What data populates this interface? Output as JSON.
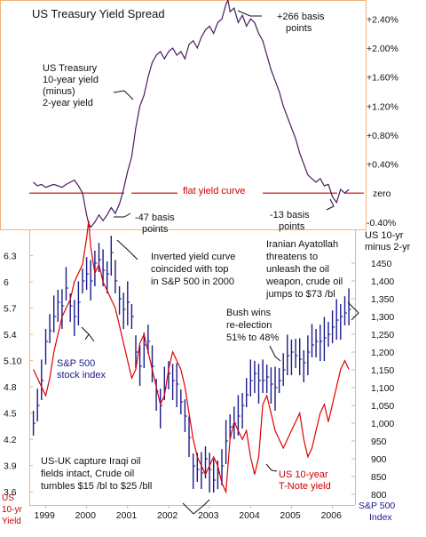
{
  "colors": {
    "spread": "#4b1a5e",
    "sp500": "#1a1a8c",
    "tnote": "#e00000",
    "flat_line": "#cc0000",
    "frame": "#f2b37a",
    "text": "#111111"
  },
  "chart_data": [
    {
      "type": "line",
      "title": "US Treasury Yield Spread",
      "ylabel": "US 10-yr minus 2-yr",
      "yticks": [
        "+2.40%",
        "+2.00%",
        "+1.60%",
        "+1.20%",
        "+0.80%",
        "+0.40%",
        "zero",
        "-0.40%"
      ],
      "ylim": [
        -0.5,
        2.6
      ],
      "series": [
        {
          "x": [
            1998.7,
            1998.8,
            1998.9,
            1999.0,
            1999.1,
            1999.2,
            1999.3,
            1999.4,
            1999.5,
            1999.6,
            1999.7,
            1999.8,
            1999.9,
            2000.0,
            2000.05,
            2000.1,
            2000.2,
            2000.3,
            2000.4,
            2000.5,
            2000.6,
            2000.7,
            2000.8,
            2000.9,
            2001.0,
            2001.1,
            2001.2,
            2001.3,
            2001.4,
            2001.5,
            2001.6,
            2001.7,
            2001.8,
            2001.9,
            2002.0,
            2002.1,
            2002.2,
            2002.3,
            2002.4,
            2002.5,
            2002.6,
            2002.7,
            2002.8,
            2002.9,
            2003.0,
            2003.1,
            2003.2,
            2003.3,
            2003.4,
            2003.45,
            2003.5,
            2003.6,
            2003.7,
            2003.8,
            2003.9,
            2004.0,
            2004.1,
            2004.2,
            2004.3,
            2004.4,
            2004.5,
            2004.6,
            2004.7,
            2004.8,
            2004.9,
            2005.0,
            2005.1,
            2005.2,
            2005.3,
            2005.4,
            2005.5,
            2005.6,
            2005.7,
            2005.8,
            2005.9,
            2006.0,
            2006.1,
            2006.2,
            2006.3,
            2006.4
          ],
          "values": [
            0.15,
            0.1,
            0.12,
            0.08,
            0.1,
            0.12,
            0.1,
            0.08,
            0.12,
            0.15,
            0.18,
            0.1,
            0.0,
            -0.3,
            -0.42,
            -0.47,
            -0.4,
            -0.3,
            -0.38,
            -0.3,
            -0.2,
            -0.28,
            -0.15,
            0.05,
            0.3,
            0.5,
            0.9,
            1.2,
            1.35,
            1.6,
            1.8,
            1.9,
            1.95,
            1.85,
            1.95,
            2.0,
            1.9,
            1.95,
            1.85,
            2.05,
            2.1,
            2.0,
            2.15,
            2.25,
            2.3,
            2.2,
            2.35,
            2.4,
            2.6,
            2.66,
            2.5,
            2.55,
            2.35,
            2.45,
            2.3,
            2.4,
            2.35,
            2.2,
            2.1,
            1.9,
            1.7,
            1.55,
            1.4,
            1.2,
            1.05,
            0.9,
            0.75,
            0.55,
            0.4,
            0.25,
            0.2,
            0.15,
            0.2,
            0.1,
            0.12,
            -0.05,
            -0.13,
            0.05,
            0.0,
            0.05
          ]
        }
      ],
      "flat_line_label": "flat yield curve"
    },
    {
      "type": "line",
      "xticks": [
        "1999",
        "2000",
        "2001",
        "2002",
        "2003",
        "2004",
        "2005",
        "2006"
      ],
      "left_axis": {
        "label": "US 10-yr Yield",
        "ticks": [
          6.3,
          6,
          5.7,
          5.4,
          5.1,
          4.8,
          4.5,
          4.2,
          3.9,
          3.6
        ],
        "tick_labels": [
          "6.3",
          "6",
          "5.7",
          "5.4",
          "5.10",
          "4.8",
          "4.5",
          "4.2",
          "3.9",
          "3.6"
        ],
        "ylim": [
          3.45,
          6.6
        ]
      },
      "right_axis": {
        "label": "S&P 500 Index",
        "ticks": [
          1450,
          1400,
          1350,
          1300,
          1250,
          1200,
          1150,
          1100,
          1050,
          1000,
          950,
          900,
          850,
          800
        ],
        "tick_labels": [
          "1450",
          "1,400",
          "1,350",
          "1,300",
          "1,250",
          "1,200",
          "1,150",
          "1,100",
          "1,050",
          "1,000",
          "950",
          "900",
          "850",
          "800"
        ],
        "ylim": [
          770,
          1545
        ]
      },
      "series": [
        {
          "name": "S&P 500 stock index",
          "axis": "right",
          "x": [
            1998.7,
            1998.8,
            1998.9,
            1999.0,
            1999.1,
            1999.2,
            1999.3,
            1999.4,
            1999.5,
            1999.6,
            1999.7,
            1999.8,
            1999.9,
            2000.0,
            2000.1,
            2000.2,
            2000.3,
            2000.4,
            2000.5,
            2000.6,
            2000.7,
            2000.8,
            2000.9,
            2001.0,
            2001.1,
            2001.2,
            2001.3,
            2001.4,
            2001.5,
            2001.6,
            2001.7,
            2001.8,
            2001.9,
            2002.0,
            2002.1,
            2002.2,
            2002.3,
            2002.4,
            2002.5,
            2002.6,
            2002.7,
            2002.8,
            2002.9,
            2003.0,
            2003.1,
            2003.2,
            2003.3,
            2003.4,
            2003.5,
            2003.6,
            2003.7,
            2003.8,
            2003.9,
            2004.0,
            2004.1,
            2004.2,
            2004.3,
            2004.4,
            2004.5,
            2004.6,
            2004.7,
            2004.8,
            2004.9,
            2005.0,
            2005.1,
            2005.2,
            2005.3,
            2005.4,
            2005.5,
            2005.6,
            2005.7,
            2005.8,
            2005.9,
            2006.0,
            2006.1,
            2006.2,
            2006.3,
            2006.4
          ],
          "values": [
            1000,
            1050,
            1120,
            1230,
            1260,
            1300,
            1340,
            1330,
            1380,
            1330,
            1300,
            1340,
            1400,
            1420,
            1400,
            1450,
            1460,
            1430,
            1420,
            1480,
            1400,
            1350,
            1320,
            1340,
            1300,
            1200,
            1160,
            1220,
            1230,
            1160,
            1090,
            1050,
            1100,
            1140,
            1120,
            1110,
            1060,
            1020,
            960,
            880,
            870,
            860,
            900,
            870,
            840,
            860,
            880,
            950,
            990,
            1000,
            1020,
            1050,
            1080,
            1120,
            1140,
            1120,
            1120,
            1130,
            1110,
            1100,
            1120,
            1150,
            1190,
            1200,
            1190,
            1180,
            1170,
            1200,
            1220,
            1230,
            1230,
            1240,
            1250,
            1270,
            1290,
            1300,
            1310,
            1320
          ]
        },
        {
          "name": "US 10-year T-Note yield",
          "axis": "left",
          "x": [
            1998.7,
            1998.8,
            1998.9,
            1999.0,
            1999.1,
            1999.2,
            1999.3,
            1999.4,
            1999.5,
            1999.6,
            1999.7,
            1999.8,
            1999.9,
            2000.0,
            2000.05,
            2000.1,
            2000.2,
            2000.3,
            2000.4,
            2000.5,
            2000.6,
            2000.7,
            2000.8,
            2000.9,
            2001.0,
            2001.1,
            2001.2,
            2001.3,
            2001.4,
            2001.5,
            2001.6,
            2001.7,
            2001.8,
            2001.9,
            2002.0,
            2002.1,
            2002.2,
            2002.3,
            2002.4,
            2002.5,
            2002.6,
            2002.7,
            2002.8,
            2002.9,
            2003.0,
            2003.1,
            2003.2,
            2003.3,
            2003.4,
            2003.5,
            2003.6,
            2003.7,
            2003.8,
            2003.9,
            2004.0,
            2004.1,
            2004.2,
            2004.3,
            2004.4,
            2004.5,
            2004.6,
            2004.7,
            2004.8,
            2004.9,
            2005.0,
            2005.1,
            2005.2,
            2005.3,
            2005.4,
            2005.5,
            2005.6,
            2005.7,
            2005.8,
            2005.9,
            2006.0,
            2006.1,
            2006.2,
            2006.3,
            2006.4
          ],
          "values": [
            5.0,
            4.9,
            4.8,
            4.7,
            4.9,
            5.2,
            5.4,
            5.6,
            5.7,
            5.8,
            6.0,
            6.1,
            6.2,
            6.5,
            6.7,
            6.4,
            6.1,
            6.2,
            6.0,
            5.9,
            5.8,
            5.7,
            5.5,
            5.3,
            5.1,
            4.9,
            5.0,
            5.3,
            5.4,
            5.2,
            5.0,
            4.8,
            4.6,
            4.7,
            5.0,
            5.2,
            5.1,
            5.0,
            4.8,
            4.5,
            4.2,
            4.0,
            3.9,
            3.8,
            3.9,
            4.0,
            3.9,
            3.7,
            3.6,
            4.2,
            4.4,
            4.3,
            4.2,
            4.3,
            4.0,
            3.8,
            4.0,
            4.6,
            4.7,
            4.5,
            4.3,
            4.2,
            4.1,
            4.2,
            4.3,
            4.4,
            4.5,
            4.2,
            4.0,
            4.1,
            4.3,
            4.5,
            4.6,
            4.4,
            4.6,
            4.8,
            5.0,
            5.1,
            5.0
          ]
        }
      ]
    }
  ],
  "annotations": {
    "spread_desc": [
      "US Treasury",
      "10-year yield",
      "(minus)",
      "2-year yield"
    ],
    "peak": [
      "+266 basis",
      "points"
    ],
    "trough_2000": [
      "-47 basis",
      "points"
    ],
    "trough_2006": [
      "-13 basis",
      "points"
    ],
    "inverted": [
      "Inverted yield curve",
      "coincided with top",
      "in S&P 500 in 2000"
    ],
    "iran": [
      "Iranian Ayatollah",
      "threatens to",
      "unleash the oil",
      "weapon, crude oil",
      "jumps to $73 /bl"
    ],
    "bush": [
      "Bush wins",
      "re-election",
      "51% to 48%"
    ],
    "sp500_label": [
      "S&P 500",
      "stock index"
    ],
    "iraq": [
      "US-UK capture Iraqi oil",
      "fields intact, Crude oil",
      "tumbles $15 /bl to $25 /bll"
    ],
    "tnote_label": [
      "US 10-year",
      "T-Note yield"
    ]
  },
  "axis_captions": {
    "left_line1": "US",
    "left_line2": "10-yr",
    "left_line3": "Yield",
    "right_line1": "S&P 500",
    "right_line2": "Index"
  }
}
